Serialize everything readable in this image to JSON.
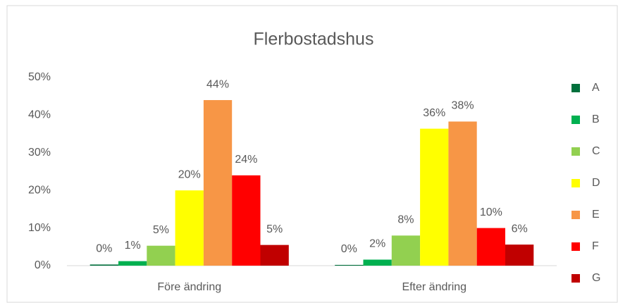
{
  "chart_data": {
    "type": "bar",
    "title": "Flerbostadshus",
    "categories": [
      "Före ändring",
      "Efter ändring"
    ],
    "series": [
      {
        "name": "A",
        "color": "#00703c",
        "values": [
          0.3,
          0.2
        ],
        "value_labels": [
          "0%",
          "0%"
        ]
      },
      {
        "name": "B",
        "color": "#00b050",
        "values": [
          1.2,
          1.6
        ],
        "value_labels": [
          "1%",
          "2%"
        ]
      },
      {
        "name": "C",
        "color": "#92d050",
        "values": [
          5.3,
          8
        ],
        "value_labels": [
          "5%",
          "8%"
        ]
      },
      {
        "name": "D",
        "color": "#ffff00",
        "values": [
          20,
          36.4
        ],
        "value_labels": [
          "20%",
          "36%"
        ]
      },
      {
        "name": "E",
        "color": "#f79646",
        "values": [
          44,
          38.3
        ],
        "value_labels": [
          "44%",
          "38%"
        ]
      },
      {
        "name": "F",
        "color": "#ff0000",
        "values": [
          24,
          10
        ],
        "value_labels": [
          "24%",
          "10%"
        ]
      },
      {
        "name": "G",
        "color": "#c00000",
        "values": [
          5.5,
          5.6
        ],
        "value_labels": [
          "5%",
          "6%"
        ]
      }
    ],
    "ylim": [
      0,
      50
    ],
    "yticks": [
      {
        "value": 0,
        "label": "0%"
      },
      {
        "value": 10,
        "label": "10%"
      },
      {
        "value": 20,
        "label": "20%"
      },
      {
        "value": 30,
        "label": "30%"
      },
      {
        "value": 40,
        "label": "40%"
      },
      {
        "value": 50,
        "label": "50%"
      }
    ],
    "grid": false,
    "legend": "right"
  }
}
